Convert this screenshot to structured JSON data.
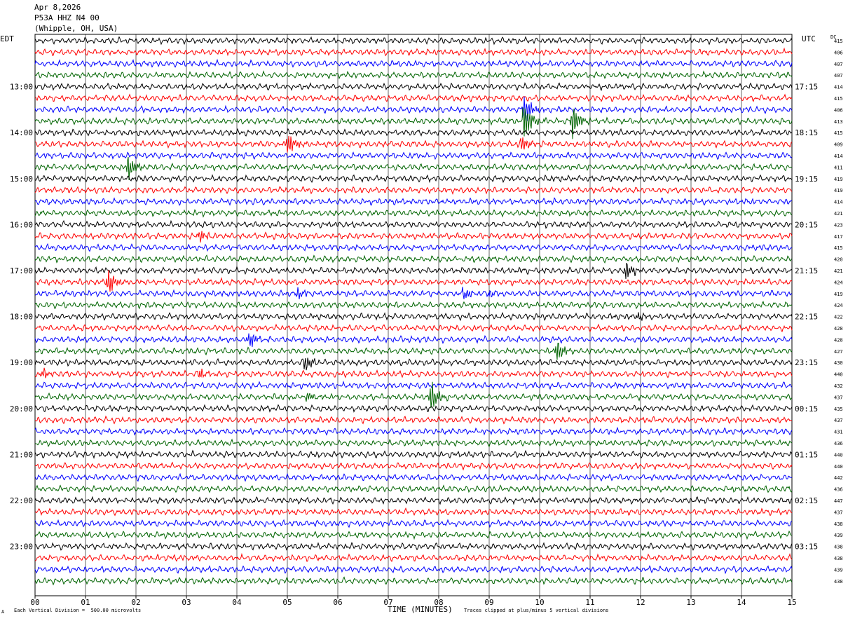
{
  "header": {
    "date": "Apr 8,2026",
    "station": "P53A HHZ N4 00",
    "location": "(Whipple, OH, USA)"
  },
  "left_zone_label": "EDT",
  "right_zone_label": "UTC",
  "dc_label": "DC",
  "footer": {
    "scale_note": "Each Vertical Division =  500.00 microvolts",
    "xlabel": "TIME (MINUTES)",
    "clip_note": "Traces clipped at plus/minus 5 vertical divisions",
    "corner_mark": "A"
  },
  "chart_data": {
    "type": "line",
    "title": "Apr 8,2026 P53A HHZ N4 00 (Whipple, OH, USA)",
    "xlabel": "TIME (MINUTES)",
    "xlim": [
      0,
      15
    ],
    "x_ticks": [
      "00",
      "01",
      "02",
      "03",
      "04",
      "05",
      "06",
      "07",
      "08",
      "09",
      "10",
      "11",
      "12",
      "13",
      "14",
      "15"
    ],
    "trace_count": 48,
    "trace_minutes": 15,
    "trace_colors": [
      "#000000",
      "#ff0000",
      "#0000ff",
      "#006400"
    ],
    "left_hour_labels": [
      {
        "trace": 4,
        "label": "13:00"
      },
      {
        "trace": 8,
        "label": "14:00"
      },
      {
        "trace": 12,
        "label": "15:00"
      },
      {
        "trace": 16,
        "label": "16:00"
      },
      {
        "trace": 20,
        "label": "17:00"
      },
      {
        "trace": 24,
        "label": "18:00"
      },
      {
        "trace": 28,
        "label": "19:00"
      },
      {
        "trace": 32,
        "label": "20:00"
      },
      {
        "trace": 36,
        "label": "21:00"
      },
      {
        "trace": 40,
        "label": "22:00"
      },
      {
        "trace": 44,
        "label": "23:00"
      }
    ],
    "right_hour_labels": [
      {
        "trace": 4,
        "label": "17:15"
      },
      {
        "trace": 8,
        "label": "18:15"
      },
      {
        "trace": 12,
        "label": "19:15"
      },
      {
        "trace": 16,
        "label": "20:15"
      },
      {
        "trace": 20,
        "label": "21:15"
      },
      {
        "trace": 24,
        "label": "22:15"
      },
      {
        "trace": 28,
        "label": "23:15"
      },
      {
        "trace": 32,
        "label": "00:15"
      },
      {
        "trace": 36,
        "label": "01:15"
      },
      {
        "trace": 40,
        "label": "02:15"
      },
      {
        "trace": 44,
        "label": "03:15"
      }
    ],
    "dc_offsets": [
      415,
      406,
      407,
      407,
      414,
      415,
      406,
      413,
      415,
      409,
      414,
      411,
      419,
      419,
      414,
      421,
      423,
      417,
      415,
      420,
      421,
      424,
      419,
      424,
      422,
      428,
      428,
      427,
      430,
      440,
      432,
      437,
      435,
      437,
      431,
      436,
      440,
      440,
      442,
      436,
      447,
      437,
      438,
      439,
      438,
      438,
      439,
      438
    ],
    "events": [
      {
        "trace": 6,
        "minute": 9.7,
        "amp": 22
      },
      {
        "trace": 7,
        "minute": 9.7,
        "amp": 28
      },
      {
        "trace": 7,
        "minute": 10.65,
        "amp": 24
      },
      {
        "trace": 9,
        "minute": 5.0,
        "amp": 18
      },
      {
        "trace": 9,
        "minute": 9.65,
        "amp": 12
      },
      {
        "trace": 11,
        "minute": 1.85,
        "amp": 18
      },
      {
        "trace": 17,
        "minute": 3.25,
        "amp": 10
      },
      {
        "trace": 20,
        "minute": 11.7,
        "amp": 14
      },
      {
        "trace": 21,
        "minute": 1.45,
        "amp": 18
      },
      {
        "trace": 22,
        "minute": 5.2,
        "amp": 8
      },
      {
        "trace": 22,
        "minute": 8.5,
        "amp": 8
      },
      {
        "trace": 22,
        "minute": 9.0,
        "amp": 6
      },
      {
        "trace": 24,
        "minute": 11.95,
        "amp": 6
      },
      {
        "trace": 26,
        "minute": 4.25,
        "amp": 12
      },
      {
        "trace": 27,
        "minute": 10.35,
        "amp": 16
      },
      {
        "trace": 28,
        "minute": 5.35,
        "amp": 12
      },
      {
        "trace": 29,
        "minute": 0.15,
        "amp": 8
      },
      {
        "trace": 29,
        "minute": 3.25,
        "amp": 8
      },
      {
        "trace": 31,
        "minute": 7.85,
        "amp": 20
      },
      {
        "trace": 31,
        "minute": 5.4,
        "amp": 8
      }
    ]
  }
}
